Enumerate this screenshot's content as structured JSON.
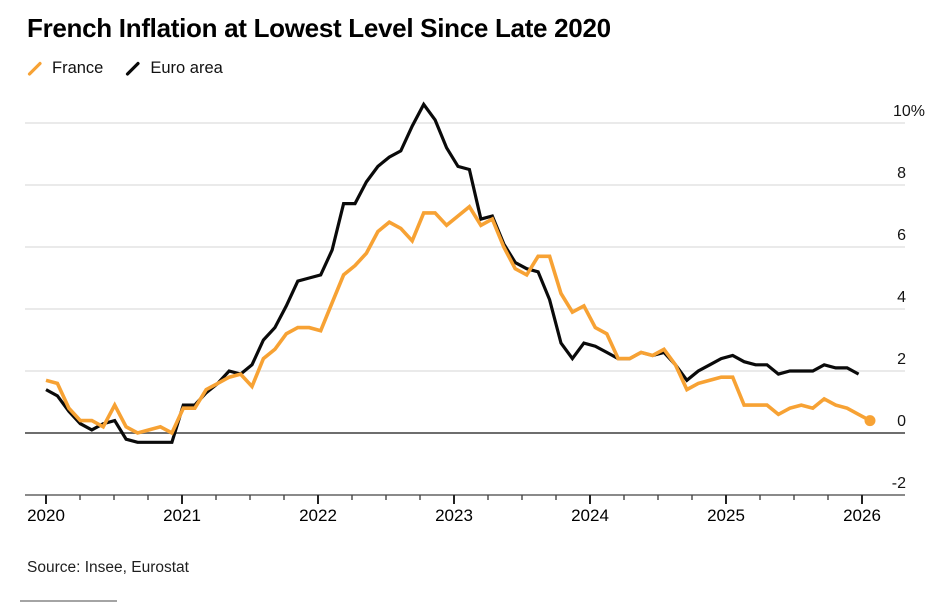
{
  "chart_data": {
    "type": "line",
    "title": "French Inflation at Lowest Level Since Late 2020",
    "source": "Source: Insee, Eurostat",
    "frequency": "monthly",
    "period": {
      "start": "2020-01",
      "france_end": "2026-01",
      "euro_area_end": "2025-12"
    },
    "grid": "horizontal",
    "legend_position": "top-left",
    "x_axis": {
      "tick_years": [
        "2020",
        "2021",
        "2022",
        "2023",
        "2024",
        "2025",
        "2026"
      ],
      "minor_ticks": "quarterly"
    },
    "y_axis": {
      "range": [
        -2,
        10
      ],
      "unit": "percent",
      "ticks": [
        {
          "value": 10,
          "label": "10%"
        },
        {
          "value": 8,
          "label": "8"
        },
        {
          "value": 6,
          "label": "6"
        },
        {
          "value": 4,
          "label": "4"
        },
        {
          "value": 2,
          "label": "2"
        },
        {
          "value": 0,
          "label": "0"
        },
        {
          "value": -2,
          "label": "-2"
        }
      ],
      "zero_line": true
    },
    "series": [
      {
        "name": "France",
        "color": "#F7A234",
        "end_dot": true,
        "values": [
          1.7,
          1.6,
          0.8,
          0.4,
          0.4,
          0.2,
          0.9,
          0.2,
          0.0,
          0.1,
          0.2,
          0.0,
          0.8,
          0.8,
          1.4,
          1.6,
          1.8,
          1.9,
          1.5,
          2.4,
          2.7,
          3.2,
          3.4,
          3.4,
          3.3,
          4.2,
          5.1,
          5.4,
          5.8,
          6.5,
          6.8,
          6.6,
          6.2,
          7.1,
          7.1,
          6.7,
          7.0,
          7.3,
          6.7,
          6.9,
          6.0,
          5.3,
          5.1,
          5.7,
          5.7,
          4.5,
          3.9,
          4.1,
          3.4,
          3.2,
          2.4,
          2.4,
          2.6,
          2.5,
          2.7,
          2.2,
          1.4,
          1.6,
          1.7,
          1.8,
          1.8,
          0.9,
          0.9,
          0.9,
          0.6,
          0.8,
          0.9,
          0.8,
          1.1,
          0.9,
          0.8,
          0.6,
          0.4
        ]
      },
      {
        "name": "Euro area",
        "color": "#0A0A0A",
        "end_dot": false,
        "values": [
          1.4,
          1.2,
          0.7,
          0.3,
          0.1,
          0.3,
          0.4,
          -0.2,
          -0.3,
          -0.3,
          -0.3,
          -0.3,
          0.9,
          0.9,
          1.3,
          1.6,
          2.0,
          1.9,
          2.2,
          3.0,
          3.4,
          4.1,
          4.9,
          5.0,
          5.1,
          5.9,
          7.4,
          7.4,
          8.1,
          8.6,
          8.9,
          9.1,
          9.9,
          10.6,
          10.1,
          9.2,
          8.6,
          8.5,
          6.9,
          7.0,
          6.1,
          5.5,
          5.3,
          5.2,
          4.3,
          2.9,
          2.4,
          2.9,
          2.8,
          2.6,
          2.4,
          2.4,
          2.6,
          2.5,
          2.6,
          2.2,
          1.7,
          2.0,
          2.2,
          2.4,
          2.5,
          2.3,
          2.2,
          2.2,
          1.9,
          2.0,
          2.0,
          2.0,
          2.2,
          2.1,
          2.1,
          1.9
        ]
      }
    ],
    "colors": {
      "gridline": "#E4E4E4",
      "zero_line": "#6E6E6E",
      "axis_baseline": "#8A8A8A",
      "tick": "#222222",
      "label": "#141414"
    }
  }
}
